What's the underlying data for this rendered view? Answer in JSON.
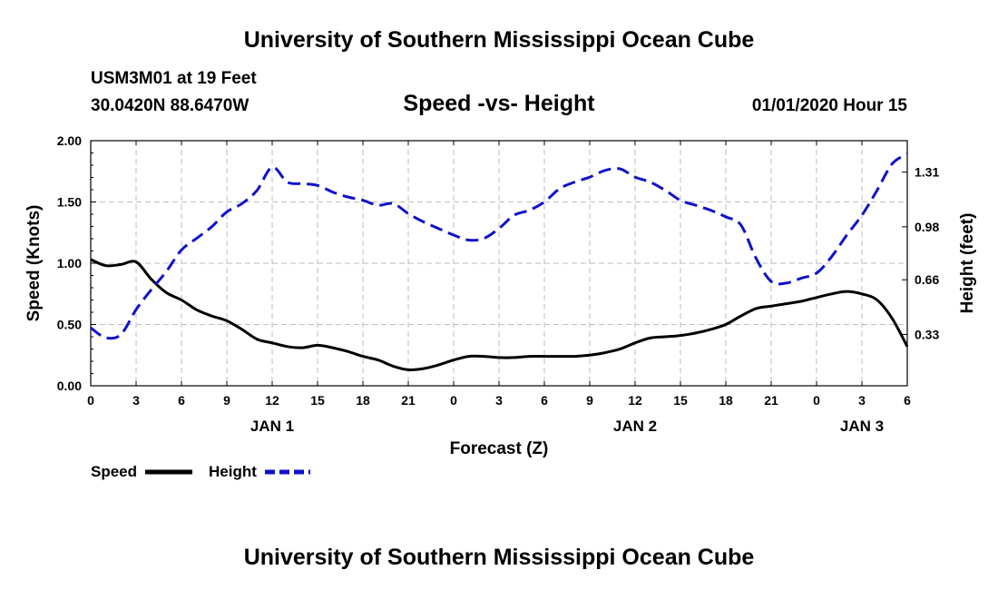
{
  "header": {
    "title": "University of Southern Mississippi Ocean Cube",
    "station": "USM3M01 at 19 Feet",
    "coords": "30.0420N 88.6470W",
    "subtitle": "Speed -vs- Height",
    "datetime": "01/01/2020 Hour 15"
  },
  "footer": {
    "title": "University of Southern Mississippi Ocean Cube"
  },
  "chart_data": {
    "type": "line",
    "xlabel": "Forecast (Z)",
    "x_ticks": [
      "0",
      "3",
      "6",
      "9",
      "12",
      "15",
      "18",
      "21",
      "0",
      "3",
      "6",
      "9",
      "12",
      "15",
      "18",
      "21",
      "0",
      "3",
      "6"
    ],
    "day_labels": [
      {
        "label": "JAN 1",
        "hour": 12
      },
      {
        "label": "JAN 2",
        "hour": 36
      },
      {
        "label": "JAN 3",
        "hour": 51
      }
    ],
    "xlim": [
      0,
      54
    ],
    "y_left": {
      "label": "Speed (Knots)",
      "lim": [
        0,
        2.0
      ],
      "ticks": [
        "0.00",
        "0.50",
        "1.00",
        "1.50",
        "2.00"
      ]
    },
    "y_right": {
      "label": "Height (feet)",
      "lim": [
        0.02,
        1.5
      ],
      "ticks": [
        "0.33",
        "0.66",
        "0.98",
        "1.31"
      ]
    },
    "grid": true,
    "series": [
      {
        "name": "Speed",
        "axis": "left",
        "color": "#000000",
        "style": "solid",
        "x": [
          0,
          1,
          2,
          3,
          4,
          5,
          6,
          7,
          8,
          9,
          10,
          11,
          12,
          13,
          14,
          15,
          16,
          17,
          18,
          19,
          20,
          21,
          22,
          23,
          24,
          25,
          26,
          27,
          28,
          29,
          30,
          31,
          32,
          33,
          34,
          35,
          36,
          37,
          38,
          39,
          40,
          41,
          42,
          43,
          44,
          45,
          46,
          47,
          48,
          49,
          50,
          51,
          52,
          53,
          54
        ],
        "values": [
          1.03,
          0.98,
          0.99,
          1.01,
          0.87,
          0.76,
          0.7,
          0.62,
          0.57,
          0.53,
          0.46,
          0.38,
          0.35,
          0.32,
          0.31,
          0.33,
          0.31,
          0.28,
          0.24,
          0.21,
          0.16,
          0.13,
          0.14,
          0.17,
          0.21,
          0.24,
          0.24,
          0.23,
          0.23,
          0.24,
          0.24,
          0.24,
          0.24,
          0.25,
          0.27,
          0.3,
          0.35,
          0.39,
          0.4,
          0.41,
          0.43,
          0.46,
          0.5,
          0.57,
          0.63,
          0.65,
          0.67,
          0.69,
          0.72,
          0.75,
          0.77,
          0.75,
          0.7,
          0.55,
          0.32
        ]
      },
      {
        "name": "Height",
        "axis": "right",
        "color": "#1010cc",
        "style": "dashed",
        "x": [
          0,
          1,
          2,
          3,
          4,
          5,
          6,
          7,
          8,
          9,
          10,
          11,
          12,
          13,
          14,
          15,
          16,
          17,
          18,
          19,
          20,
          21,
          22,
          23,
          24,
          25,
          26,
          27,
          28,
          29,
          30,
          31,
          32,
          33,
          34,
          35,
          36,
          37,
          38,
          39,
          40,
          41,
          42,
          43,
          44,
          45,
          46,
          47,
          48,
          49,
          50,
          51,
          52,
          53,
          54
        ],
        "values": [
          0.37,
          0.31,
          0.33,
          0.48,
          0.6,
          0.71,
          0.84,
          0.91,
          0.98,
          1.07,
          1.12,
          1.2,
          1.34,
          1.25,
          1.24,
          1.23,
          1.19,
          1.16,
          1.14,
          1.11,
          1.12,
          1.06,
          1.01,
          0.97,
          0.93,
          0.9,
          0.91,
          0.97,
          1.05,
          1.08,
          1.13,
          1.21,
          1.25,
          1.28,
          1.32,
          1.33,
          1.28,
          1.25,
          1.2,
          1.14,
          1.11,
          1.08,
          1.04,
          0.99,
          0.79,
          0.65,
          0.64,
          0.67,
          0.7,
          0.8,
          0.93,
          1.05,
          1.2,
          1.36,
          1.42
        ]
      }
    ]
  }
}
